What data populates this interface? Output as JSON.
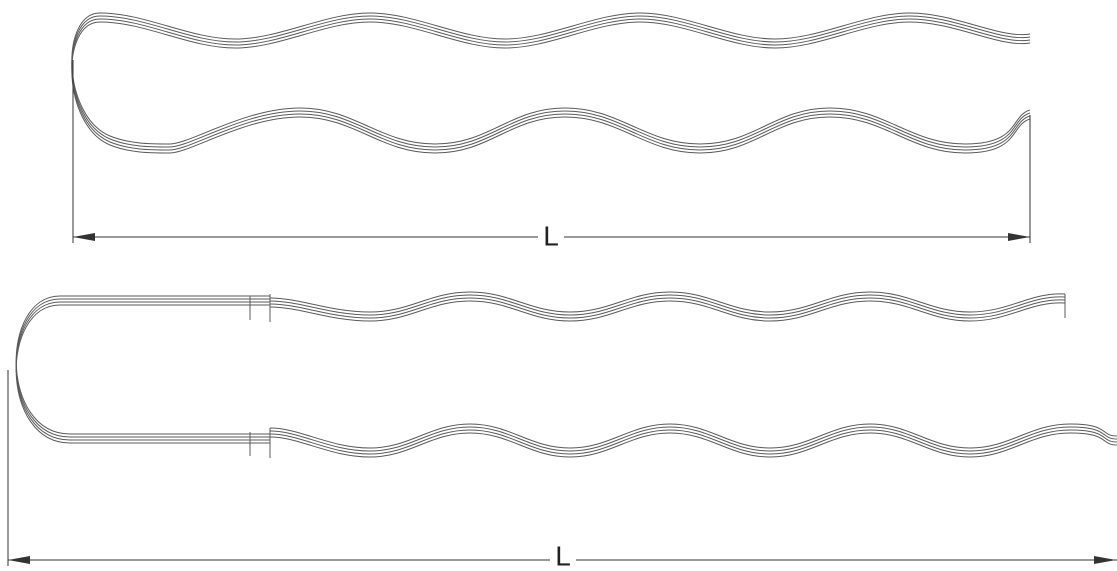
{
  "diagrams": [
    {
      "dimension_label": "L"
    },
    {
      "dimension_label": "L"
    }
  ]
}
